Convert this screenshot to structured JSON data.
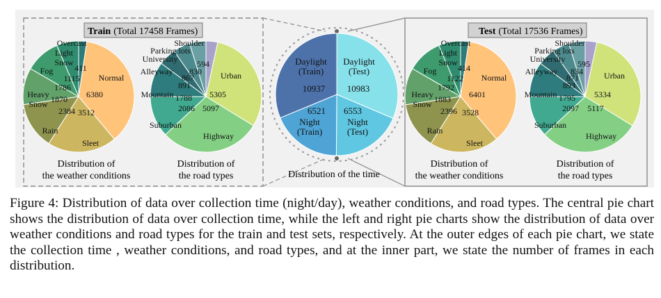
{
  "train": {
    "title_bold": "Train",
    "title_rest": "(Total 17458 Frames)",
    "weather_caption": [
      "Distribution of",
      "the weather conditions"
    ],
    "road_caption": [
      "Distribution of",
      "the road types"
    ]
  },
  "test": {
    "title_bold": "Test",
    "title_rest": "(Total 17536 Frames)",
    "weather_caption": [
      "Distribution of",
      "the weather conditions"
    ],
    "road_caption": [
      "Distribution of",
      "the road types"
    ]
  },
  "center_caption": "Distribution of the time",
  "caption": "Figure 4: Distribution of data over collection time (night/day), weather conditions, and road types. The central pie chart shows the distribution of data over collection time, while the left and right pie charts show the distribution of data over weather conditions and road types for the train and test sets, respectively. At the outer edges of each pie chart, we state the collection time , weather conditions, and road types, and at the inner part, we state the number of frames in each distribution.",
  "chart_data": [
    {
      "type": "pie",
      "id": "train-weather",
      "categories": [
        "Overcast",
        "Normal",
        "Sleet",
        "Rain",
        "Heavy Snow",
        "Fog",
        "Light Snow"
      ],
      "values": [
        411,
        6380,
        3512,
        2384,
        1870,
        1786,
        1115
      ],
      "colors": [
        "#2e7c78",
        "#ffc37a",
        "#cdb660",
        "#8e944e",
        "#62a26a",
        "#3d9b6d",
        "#2f8c6f"
      ]
    },
    {
      "type": "pie",
      "id": "train-road",
      "categories": [
        "Shoulder",
        "Urban",
        "Highway",
        "Suburban",
        "Mountain",
        "Alleyway",
        "University",
        "Parking lots"
      ],
      "values": [
        594,
        5305,
        5097,
        2086,
        1788,
        891,
        867,
        830
      ],
      "colors": [
        "#a9a3cc",
        "#cfe37a",
        "#83cf84",
        "#41a98f",
        "#2e7c7d",
        "#2f6b70",
        "#4c8a8d",
        "#6aa0a4"
      ]
    },
    {
      "type": "pie",
      "id": "time",
      "categories": [
        "Daylight (Test)",
        "Night (Test)",
        "Night (Train)",
        "Daylight (Train)"
      ],
      "values": [
        10983,
        6553,
        6521,
        10937
      ],
      "colors": [
        "#87e1ea",
        "#60c7e2",
        "#4ea4d5",
        "#4d72aa"
      ]
    },
    {
      "type": "pie",
      "id": "test-weather",
      "categories": [
        "Overcast",
        "Normal",
        "Sleet",
        "Rain",
        "Heavy Snow",
        "Fog",
        "Light Snow"
      ],
      "values": [
        414,
        6401,
        3528,
        2396,
        1883,
        1792,
        1122
      ],
      "colors": [
        "#2e7c78",
        "#ffc37a",
        "#cdb660",
        "#8e944e",
        "#62a26a",
        "#3d9b6d",
        "#2f8c6f"
      ]
    },
    {
      "type": "pie",
      "id": "test-road",
      "categories": [
        "Shoulder",
        "Urban",
        "Highway",
        "Suburban",
        "Mountain",
        "Alleyway",
        "University",
        "Parking lots"
      ],
      "values": [
        595,
        5334,
        5117,
        2097,
        1795,
        893,
        871,
        834
      ],
      "colors": [
        "#a9a3cc",
        "#cfe37a",
        "#83cf84",
        "#41a98f",
        "#2e7c7d",
        "#2f6b70",
        "#4c8a8d",
        "#6aa0a4"
      ]
    }
  ]
}
